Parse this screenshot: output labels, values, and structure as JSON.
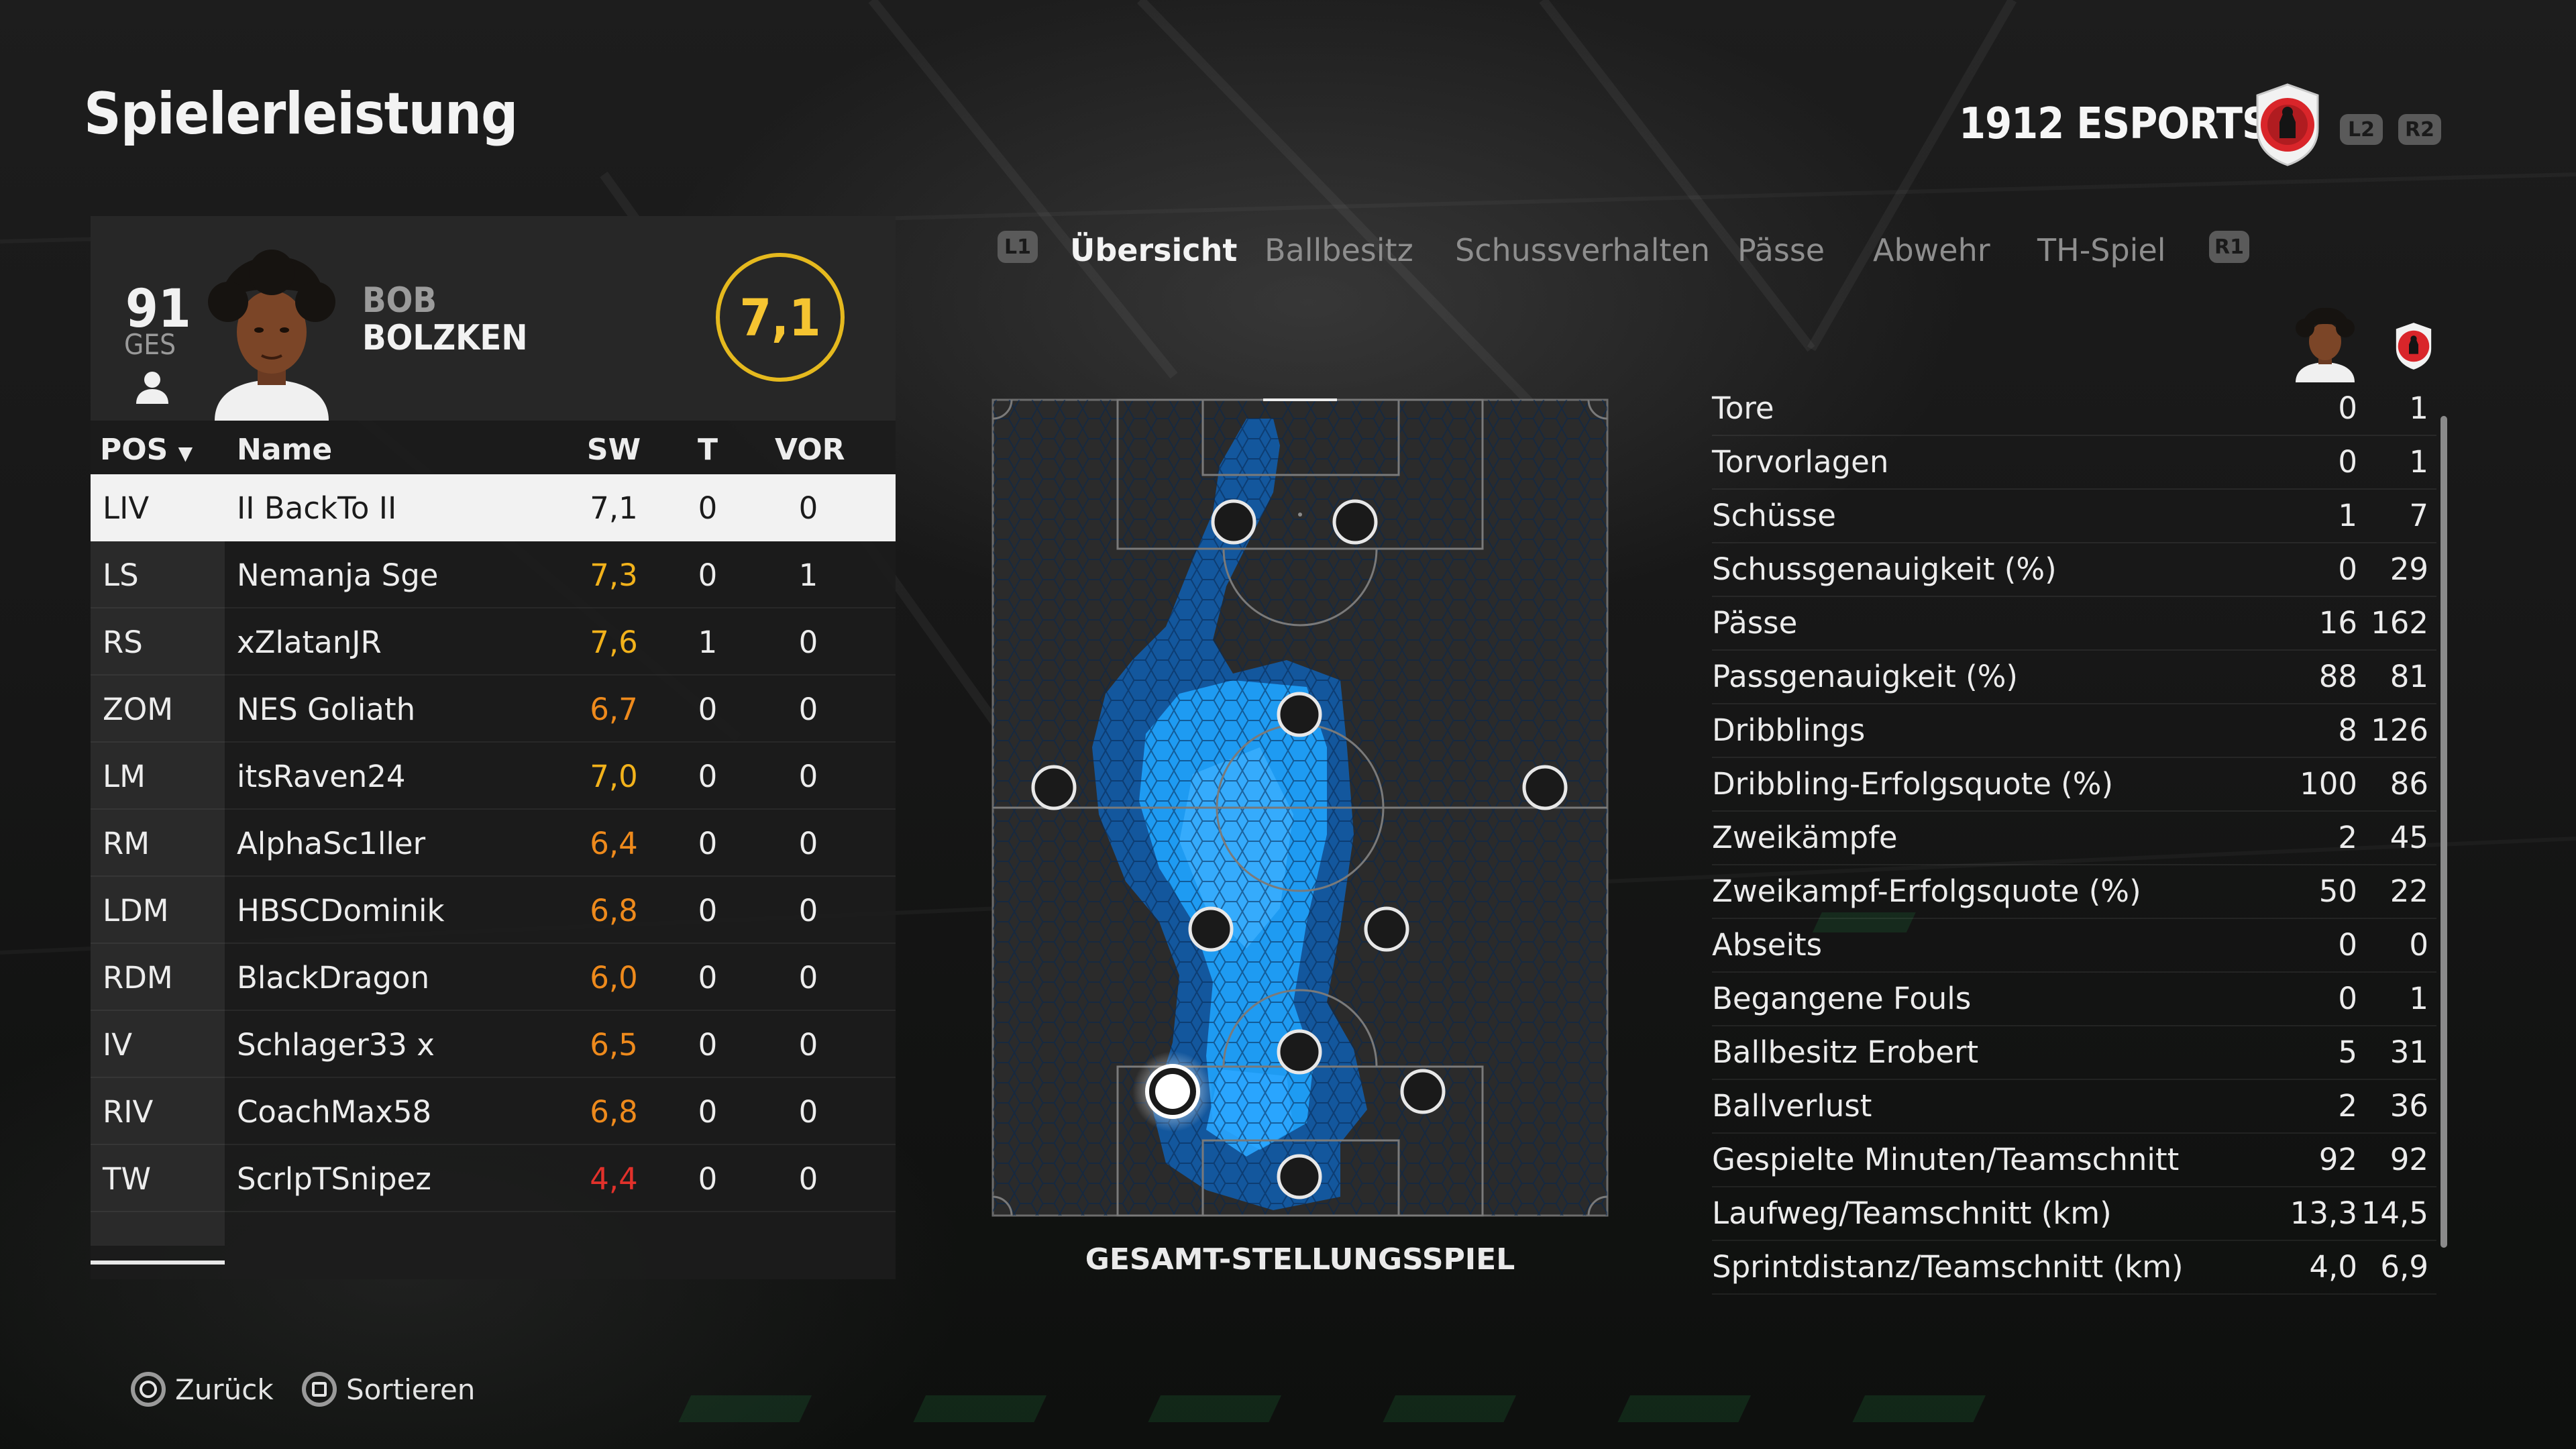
{
  "header": {
    "title": "Spielerleistung",
    "team_name": "1912 ESPORTS",
    "l2_label": "L2",
    "r2_label": "R2"
  },
  "player": {
    "ovr_value": "91",
    "ovr_label": "GES",
    "first_name": "BOB",
    "last_name": "BOLZKEN",
    "match_rating": "7,1"
  },
  "table": {
    "headers": {
      "pos": "POS",
      "name": "Name",
      "rating": "SW",
      "goals": "T",
      "assists": "VOR"
    },
    "rows": [
      {
        "pos": "LIV",
        "name": "II BackTo II",
        "rating": "7,1",
        "goals": "0",
        "assists": "0",
        "rating_color": "#1b1b1b",
        "selected": true
      },
      {
        "pos": "LS",
        "name": "Nemanja Sge",
        "rating": "7,3",
        "goals": "0",
        "assists": "1",
        "rating_color": "#f2b21b"
      },
      {
        "pos": "RS",
        "name": "xZlatanJR",
        "rating": "7,6",
        "goals": "1",
        "assists": "0",
        "rating_color": "#f2b21b"
      },
      {
        "pos": "ZOM",
        "name": "NES Goliath",
        "rating": "6,7",
        "goals": "0",
        "assists": "0",
        "rating_color": "#ee8a1c"
      },
      {
        "pos": "LM",
        "name": "itsRaven24",
        "rating": "7,0",
        "goals": "0",
        "assists": "0",
        "rating_color": "#f2b21b"
      },
      {
        "pos": "RM",
        "name": "AlphaSc1ller",
        "rating": "6,4",
        "goals": "0",
        "assists": "0",
        "rating_color": "#ee8a1c"
      },
      {
        "pos": "LDM",
        "name": "HBSCDominik",
        "rating": "6,8",
        "goals": "0",
        "assists": "0",
        "rating_color": "#ee8a1c"
      },
      {
        "pos": "RDM",
        "name": "BlackDragon",
        "rating": "6,0",
        "goals": "0",
        "assists": "0",
        "rating_color": "#ee8a1c"
      },
      {
        "pos": "IV",
        "name": "Schlager33 x",
        "rating": "6,5",
        "goals": "0",
        "assists": "0",
        "rating_color": "#ee8a1c"
      },
      {
        "pos": "RIV",
        "name": "CoachMax58",
        "rating": "6,8",
        "goals": "0",
        "assists": "0",
        "rating_color": "#ee8a1c"
      },
      {
        "pos": "TW",
        "name": "ScrlpTSnipez",
        "rating": "4,4",
        "goals": "0",
        "assists": "0",
        "rating_color": "#e2312b"
      }
    ]
  },
  "tabs": {
    "l1_label": "L1",
    "r1_label": "R1",
    "items": [
      {
        "label": "Übersicht",
        "active": true
      },
      {
        "label": "Ballbesitz"
      },
      {
        "label": "Schussverhalten"
      },
      {
        "label": "Pässe"
      },
      {
        "label": "Abwehr"
      },
      {
        "label": "TH-Spiel"
      }
    ]
  },
  "pitch": {
    "caption": "GESAMT-STELLUNGSSPIEL",
    "heat_color": "#1e9bf2"
  },
  "stats": [
    {
      "label": "Tore",
      "player": "0",
      "team": "1"
    },
    {
      "label": "Torvorlagen",
      "player": "0",
      "team": "1"
    },
    {
      "label": "Schüsse",
      "player": "1",
      "team": "7"
    },
    {
      "label": "Schussgenauigkeit (%)",
      "player": "0",
      "team": "29"
    },
    {
      "label": "Pässe",
      "player": "16",
      "team": "162"
    },
    {
      "label": "Passgenauigkeit (%)",
      "player": "88",
      "team": "81"
    },
    {
      "label": "Dribblings",
      "player": "8",
      "team": "126"
    },
    {
      "label": "Dribbling-Erfolgsquote (%)",
      "player": "100",
      "team": "86"
    },
    {
      "label": "Zweikämpfe",
      "player": "2",
      "team": "45"
    },
    {
      "label": "Zweikampf-Erfolgsquote (%)",
      "player": "50",
      "team": "22"
    },
    {
      "label": "Abseits",
      "player": "0",
      "team": "0"
    },
    {
      "label": "Begangene Fouls",
      "player": "0",
      "team": "1"
    },
    {
      "label": "Ballbesitz Erobert",
      "player": "5",
      "team": "31"
    },
    {
      "label": "Ballverlust",
      "player": "2",
      "team": "36"
    },
    {
      "label": "Gespielte Minuten/Teamschnitt",
      "player": "92",
      "team": "92"
    },
    {
      "label": "Laufweg/Teamschnitt (km)",
      "player": "13,3",
      "team": "14,5"
    },
    {
      "label": "Sprintdistanz/Teamschnitt (km)",
      "player": "4,0",
      "team": "6,9"
    }
  ],
  "footer": {
    "back_label": "Zurück",
    "sort_label": "Sortieren"
  },
  "colors": {
    "accent_gold": "#e5b91e",
    "crest_red": "#d9252a"
  }
}
